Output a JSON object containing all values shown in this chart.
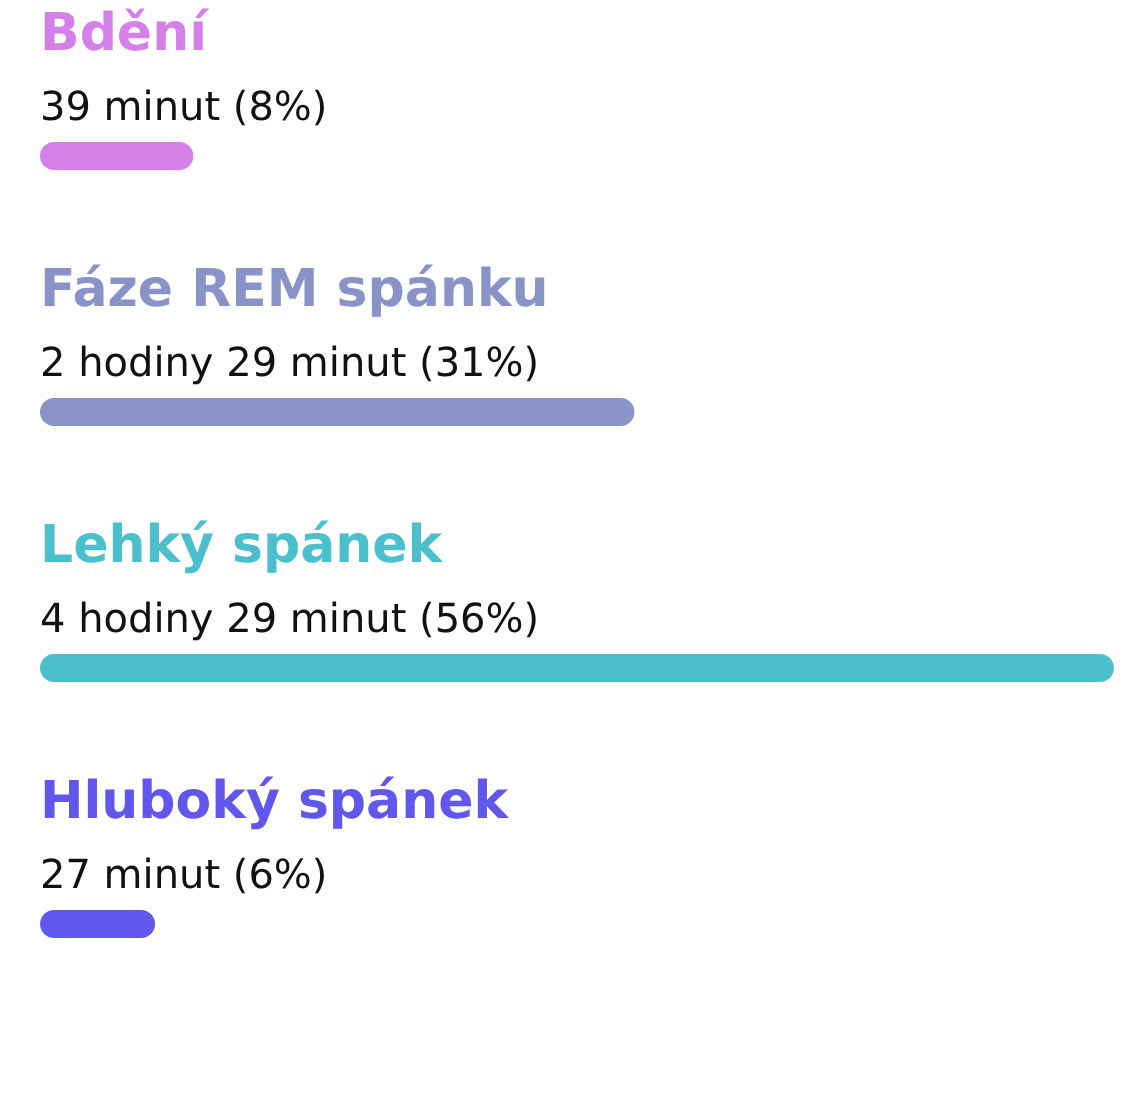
{
  "chart_data": {
    "type": "bar",
    "orientation": "horizontal",
    "categories": [
      "Bdění",
      "Fáze REM spánku",
      "Lehký spánek",
      "Hluboký spánek"
    ],
    "values": [
      8,
      31,
      56,
      6
    ],
    "colors": [
      "#d580e8",
      "#8a93c8",
      "#4bbfcb",
      "#6157ec"
    ],
    "value_labels": [
      "39 minut (8%)",
      "2 hodiny 29 minut (31%)",
      "4 hodiny 29 minut (56%)",
      "27 minut (6%)"
    ]
  }
}
